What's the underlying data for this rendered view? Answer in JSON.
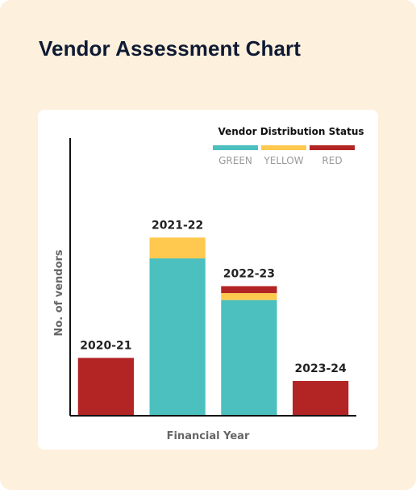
{
  "page": {
    "title": "Vendor Assessment Chart"
  },
  "chart_data": {
    "type": "bar",
    "stacked": true,
    "categories": [
      "2020-21",
      "2021-22",
      "2022-23",
      "2023-24"
    ],
    "series": [
      {
        "name": "GREEN",
        "color": "#4bc0bf",
        "values": [
          0,
          68,
          50,
          0
        ]
      },
      {
        "name": "YELLOW",
        "color": "#ffc94f",
        "values": [
          0,
          9,
          3,
          0
        ]
      },
      {
        "name": "RED",
        "color": "#b32425",
        "values": [
          25,
          0,
          3,
          15
        ]
      }
    ],
    "legend_title": "Vendor Distribution Status",
    "legend_position": "top-right",
    "xlabel": "Financial Year",
    "ylabel": "No. of vendors",
    "ylim": [
      0,
      120
    ],
    "grid": false,
    "bar_labels": "category names above bars"
  }
}
